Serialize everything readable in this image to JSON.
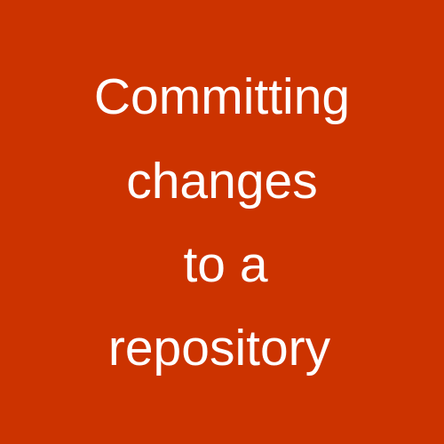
{
  "background_color": "#cc3300",
  "text_color": "#ffffff",
  "title_lines": [
    "Committing",
    "changes",
    "to a",
    "repository"
  ]
}
